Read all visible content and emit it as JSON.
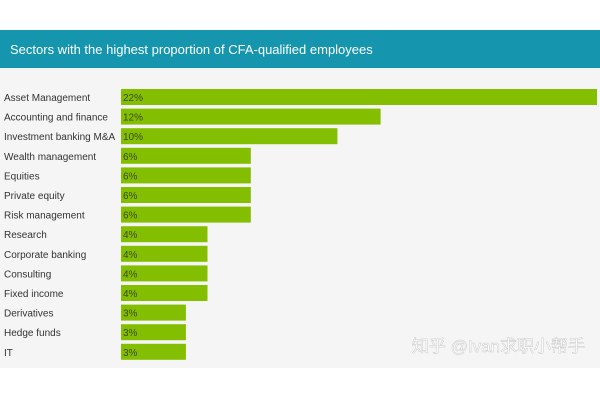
{
  "header": {
    "title": "Sectors with the highest proportion of CFA-qualified employees"
  },
  "watermark": {
    "text": "知乎 @Ivan求职小帮手"
  },
  "colors": {
    "header_bg": "#1596ae",
    "header_text": "#ffffff",
    "panel_bg": "#f5f5f5",
    "bar": "#84be00",
    "bar_label": "#3b4a10",
    "category_text": "#333333",
    "watermark_text": "#ffffff"
  },
  "chart_data": {
    "type": "bar",
    "orientation": "horizontal",
    "title": "Sectors with the highest proportion of CFA-qualified employees",
    "categories": [
      "Asset Management",
      "Accounting and finance",
      "Investment banking M&A",
      "Wealth management",
      "Equities",
      "Private equity",
      "Risk management",
      "Research",
      "Corporate banking",
      "Consulting",
      "Fixed income",
      "Derivatives",
      "Hedge funds",
      "IT"
    ],
    "values": [
      22,
      12,
      10,
      6,
      6,
      6,
      6,
      4,
      4,
      4,
      4,
      3,
      3,
      3
    ],
    "data_labels": [
      "22%",
      "12%",
      "10%",
      "6%",
      "6%",
      "6%",
      "6%",
      "4%",
      "4%",
      "4%",
      "4%",
      "3%",
      "3%",
      "3%"
    ],
    "unit": "%",
    "xlim": [
      0,
      22
    ],
    "grid": false,
    "legend": "none"
  }
}
